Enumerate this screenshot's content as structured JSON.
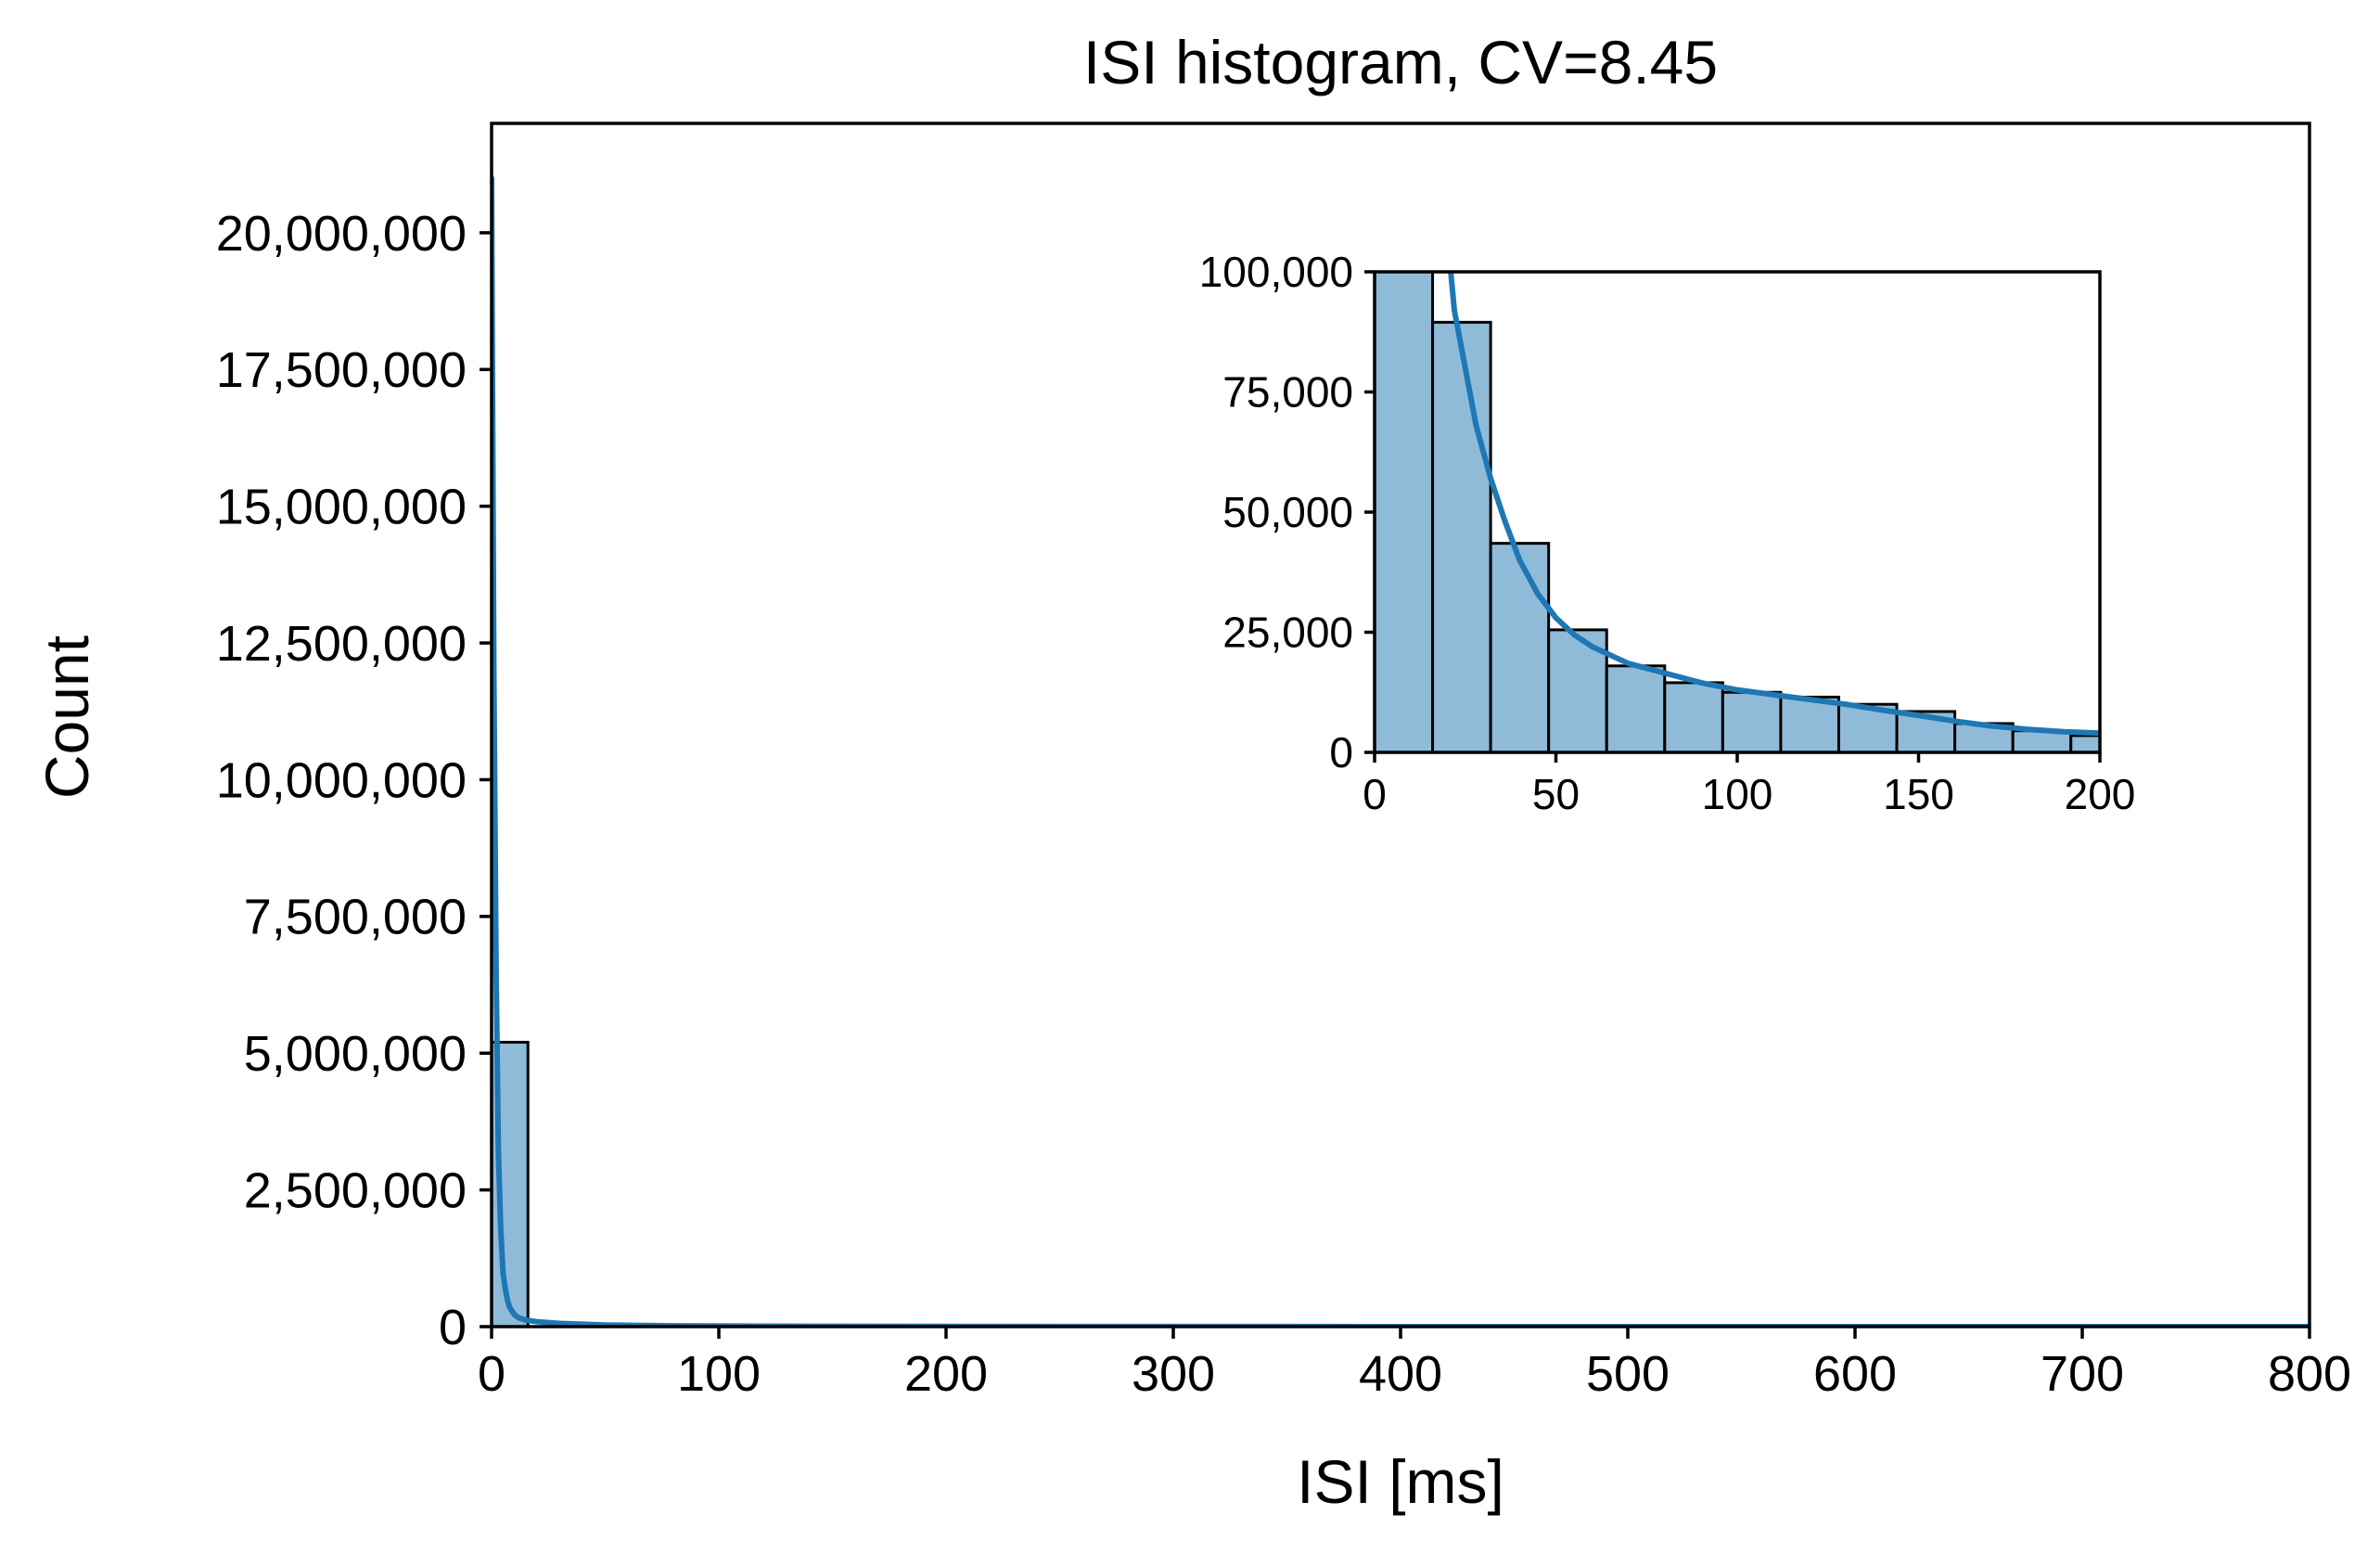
{
  "chart_data": [
    {
      "type": "bar",
      "title": "ISI histogram, CV=8.45",
      "xlabel": "ISI [ms]",
      "ylabel": "Count",
      "xlim": [
        0,
        800
      ],
      "ylim": [
        0,
        22000000
      ],
      "xticks": [
        0,
        100,
        200,
        300,
        400,
        500,
        600,
        700,
        800
      ],
      "xtick_labels": [
        "0",
        "100",
        "200",
        "300",
        "400",
        "500",
        "600",
        "700",
        "800"
      ],
      "yticks": [
        0,
        2500000,
        5000000,
        7500000,
        10000000,
        12500000,
        15000000,
        17500000,
        20000000
      ],
      "ytick_labels": [
        "0",
        "2,500,000",
        "5,000,000",
        "7,500,000",
        "10,000,000",
        "12,500,000",
        "15,000,000",
        "17,500,000",
        "20,000,000"
      ],
      "bins": [
        {
          "x0": 0,
          "x1": 16,
          "count": 5200000
        }
      ],
      "kde": {
        "x": [
          0,
          1,
          2,
          3,
          4,
          5,
          6,
          7,
          8,
          10,
          12,
          15,
          20,
          30,
          50,
          80,
          120,
          200,
          300,
          400,
          500,
          600,
          700,
          800
        ],
        "y": [
          21000000,
          12000000,
          6500000,
          3200000,
          1800000,
          1000000,
          700000,
          480000,
          350000,
          220000,
          160000,
          120000,
          90000,
          60000,
          30000,
          15000,
          8000,
          4000,
          2000,
          1000,
          500,
          300,
          200,
          100
        ]
      },
      "series_color": "#1f77b4",
      "bar_fill": "#8fbbd9",
      "grid": false
    },
    {
      "type": "bar",
      "title": "",
      "xlabel": "",
      "ylabel": "",
      "xlim": [
        0,
        200
      ],
      "ylim": [
        0,
        100000
      ],
      "xticks": [
        0,
        50,
        100,
        150,
        200
      ],
      "xtick_labels": [
        "0",
        "50",
        "100",
        "150",
        "200"
      ],
      "yticks": [
        0,
        25000,
        50000,
        75000,
        100000
      ],
      "ytick_labels": [
        "0",
        "25,000",
        "50,000",
        "75,000",
        "100,000"
      ],
      "bin_edges": [
        0,
        16,
        32,
        48,
        64,
        80,
        96,
        112,
        128,
        144,
        160,
        176,
        192,
        208
      ],
      "counts": [
        100000,
        89500,
        43500,
        25500,
        18000,
        14500,
        12500,
        11500,
        10000,
        8500,
        6000,
        4500,
        3500
      ],
      "kde": {
        "x": [
          21,
          22,
          25,
          28,
          32,
          36,
          40,
          45,
          50,
          55,
          60,
          70,
          80,
          90,
          100,
          110,
          120,
          130,
          140,
          150,
          160,
          170,
          180,
          190,
          200
        ],
        "y": [
          100000,
          92000,
          80000,
          68000,
          57000,
          48000,
          40000,
          33000,
          28000,
          24500,
          22000,
          18500,
          16500,
          14500,
          13000,
          12000,
          11000,
          10000,
          8800,
          7700,
          6500,
          5500,
          4800,
          4300,
          4000
        ]
      },
      "series_color": "#1f77b4",
      "bar_fill": "#8fbbd9",
      "grid": false
    }
  ]
}
